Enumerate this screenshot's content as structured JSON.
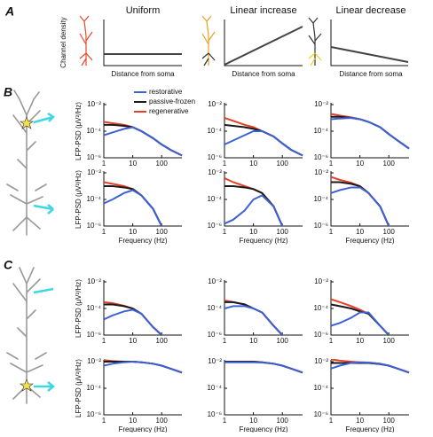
{
  "panel_labels": [
    "A",
    "B",
    "C"
  ],
  "schematics": [
    {
      "title": "Uniform",
      "y_label": "Channel density",
      "x_label": "Distance from soma"
    },
    {
      "title": "Linear increase",
      "x_label": "Distance from soma"
    },
    {
      "title": "Linear decrease",
      "x_label": "Distance from soma"
    }
  ],
  "chart_data": [
    {
      "type": "line",
      "xlog": true,
      "ylog": true,
      "x": [
        1,
        2,
        5,
        10,
        20,
        50,
        100,
        200,
        500
      ],
      "xlim": [
        1,
        500
      ],
      "ylim": [
        1e-06,
        0.01
      ],
      "xticks": [
        1,
        10,
        100
      ],
      "yticks": [
        {
          "value": 1e-06,
          "label": "10⁻⁶"
        },
        {
          "value": 0.0001,
          "label": "10⁻⁴"
        },
        {
          "value": 0.01,
          "label": "10⁻²"
        }
      ],
      "y_label": "LFP-PSD (μV²/Hz)",
      "series": [
        {
          "name": "restorative",
          "color": "#3d62d6",
          "values": [
            5e-05,
            8e-05,
            0.00015,
            0.0002,
            0.0001,
            3e-05,
            1e-05,
            4e-06,
            1.5e-06
          ]
        },
        {
          "name": "passive-frozen",
          "color": "#1a1a1a",
          "values": [
            0.0003,
            0.0003,
            0.00025,
            0.0002,
            0.0001,
            3e-05,
            1e-05,
            4e-06,
            1.5e-06
          ]
        },
        {
          "name": "regenerative",
          "color": "#e5402a",
          "values": [
            0.0005,
            0.0004,
            0.0003,
            0.0002,
            0.0001,
            3e-05,
            1e-05,
            4e-06,
            1.5e-06
          ]
        }
      ]
    },
    {
      "type": "line",
      "xlog": true,
      "ylog": true,
      "x": [
        1,
        2,
        5,
        10,
        20,
        50,
        100,
        200,
        500
      ],
      "xlim": [
        1,
        500
      ],
      "ylim": [
        1e-06,
        0.01
      ],
      "xticks": [
        1,
        10,
        100
      ],
      "yticks": [
        {
          "value": 1e-06,
          "label": "10⁻⁶"
        },
        {
          "value": 0.0001,
          "label": "10⁻⁴"
        },
        {
          "value": 0.01,
          "label": "10⁻²"
        }
      ],
      "series": [
        {
          "color": "#3d62d6",
          "values": [
            1e-05,
            2e-05,
            5e-05,
            0.0001,
            0.0001,
            4e-05,
            1.2e-05,
            4e-06,
            1.5e-06
          ]
        },
        {
          "color": "#1a1a1a",
          "values": [
            0.0003,
            0.00025,
            0.0002,
            0.00015,
            0.0001,
            4e-05,
            1.2e-05,
            4e-06,
            1.5e-06
          ]
        },
        {
          "color": "#e5402a",
          "values": [
            0.001,
            0.0006,
            0.0003,
            0.0002,
            0.0001,
            4e-05,
            1.2e-05,
            4e-06,
            1.5e-06
          ]
        }
      ]
    },
    {
      "type": "line",
      "xlog": true,
      "ylog": true,
      "x": [
        1,
        2,
        5,
        10,
        20,
        50,
        100,
        200,
        500
      ],
      "xlim": [
        1,
        500
      ],
      "ylim": [
        1e-06,
        0.01
      ],
      "xticks": [
        1,
        10,
        100
      ],
      "yticks": [
        {
          "value": 1e-06,
          "label": "10⁻⁶"
        },
        {
          "value": 0.0001,
          "label": "10⁻⁴"
        },
        {
          "value": 0.01,
          "label": "10⁻²"
        }
      ],
      "series": [
        {
          "color": "#3d62d6",
          "values": [
            0.0008,
            0.0009,
            0.001,
            0.0008,
            0.0005,
            0.0002,
            6e-05,
            2e-05,
            5e-06
          ]
        },
        {
          "color": "#1a1a1a",
          "values": [
            0.0012,
            0.0012,
            0.001,
            0.0008,
            0.0005,
            0.0002,
            6e-05,
            2e-05,
            5e-06
          ]
        },
        {
          "color": "#e5402a",
          "values": [
            0.002,
            0.0015,
            0.0011,
            0.0008,
            0.0005,
            0.0002,
            6e-05,
            2e-05,
            5e-06
          ]
        }
      ]
    },
    {
      "type": "line",
      "xlog": true,
      "ylog": true,
      "x": [
        1,
        2,
        5,
        10,
        20,
        50,
        100,
        200,
        500
      ],
      "xlim": [
        1,
        500
      ],
      "ylim": [
        1e-06,
        0.01
      ],
      "xticks": [
        1,
        10,
        100
      ],
      "yticks": [
        {
          "value": 1e-06,
          "label": "10⁻⁶"
        },
        {
          "value": 0.0001,
          "label": "10⁻⁴"
        },
        {
          "value": 0.01,
          "label": "10⁻²"
        }
      ],
      "y_label": "LFP-PSD (μV²/Hz)",
      "x_label": "Frequency (Hz)",
      "series": [
        {
          "color": "#3d62d6",
          "values": [
            5e-05,
            0.0001,
            0.0003,
            0.0005,
            0.0002,
            2e-05,
            1e-06,
            null,
            null
          ]
        },
        {
          "color": "#1a1a1a",
          "values": [
            0.001,
            0.001,
            0.0008,
            0.0006,
            0.0002,
            2e-05,
            1e-06,
            null,
            null
          ]
        },
        {
          "color": "#e5402a",
          "values": [
            0.002,
            0.0015,
            0.001,
            0.0006,
            0.0002,
            2e-05,
            1e-06,
            null,
            null
          ]
        }
      ]
    },
    {
      "type": "line",
      "xlog": true,
      "ylog": true,
      "x": [
        1,
        2,
        5,
        10,
        20,
        50,
        100,
        200,
        500
      ],
      "xlim": [
        1,
        500
      ],
      "ylim": [
        1e-06,
        0.01
      ],
      "xticks": [
        1,
        10,
        100
      ],
      "yticks": [
        {
          "value": 1e-06,
          "label": "10⁻⁶"
        },
        {
          "value": 0.0001,
          "label": "10⁻⁴"
        },
        {
          "value": 0.01,
          "label": "10⁻²"
        }
      ],
      "x_label": "Frequency (Hz)",
      "series": [
        {
          "color": "#3d62d6",
          "values": [
            1.5e-06,
            3e-06,
            1.5e-05,
            0.0001,
            0.0002,
            3e-05,
            1e-06,
            null,
            null
          ]
        },
        {
          "color": "#1a1a1a",
          "values": [
            0.001,
            0.001,
            0.0008,
            0.0006,
            0.0003,
            3e-05,
            1e-06,
            null,
            null
          ]
        },
        {
          "color": "#e5402a",
          "values": [
            0.004,
            0.002,
            0.001,
            0.0006,
            0.0003,
            3e-05,
            1e-06,
            null,
            null
          ]
        }
      ]
    },
    {
      "type": "line",
      "xlog": true,
      "ylog": true,
      "x": [
        1,
        2,
        5,
        10,
        20,
        50,
        100,
        200,
        500
      ],
      "xlim": [
        1,
        500
      ],
      "ylim": [
        1e-06,
        0.01
      ],
      "xticks": [
        1,
        10,
        100
      ],
      "yticks": [
        {
          "value": 1e-06,
          "label": "10⁻⁶"
        },
        {
          "value": 0.0001,
          "label": "10⁻⁴"
        },
        {
          "value": 0.01,
          "label": "10⁻²"
        }
      ],
      "x_label": "Frequency (Hz)",
      "series": [
        {
          "color": "#3d62d6",
          "values": [
            0.0003,
            0.0005,
            0.0008,
            0.0008,
            0.0003,
            3e-05,
            1e-06,
            null,
            null
          ]
        },
        {
          "color": "#1a1a1a",
          "values": [
            0.002,
            0.002,
            0.0015,
            0.001,
            0.0003,
            3e-05,
            1e-06,
            null,
            null
          ]
        },
        {
          "color": "#e5402a",
          "values": [
            0.005,
            0.003,
            0.0018,
            0.001,
            0.0003,
            3e-05,
            1e-06,
            null,
            null
          ]
        }
      ]
    },
    {
      "type": "line",
      "xlog": true,
      "ylog": true,
      "x": [
        1,
        2,
        5,
        10,
        20,
        50,
        100,
        200,
        500
      ],
      "xlim": [
        1,
        500
      ],
      "ylim": [
        1e-06,
        0.01
      ],
      "xticks": [
        1,
        10,
        100
      ],
      "yticks": [
        {
          "value": 1e-06,
          "label": "10⁻⁶"
        },
        {
          "value": 0.0001,
          "label": "10⁻⁴"
        },
        {
          "value": 0.01,
          "label": "10⁻²"
        }
      ],
      "y_label": "LFP-PSD (μV²/Hz)",
      "series": [
        {
          "color": "#3d62d6",
          "values": [
            1.5e-05,
            3e-05,
            6e-05,
            8e-05,
            4e-05,
            4e-06,
            1e-06,
            null,
            null
          ]
        },
        {
          "color": "#1a1a1a",
          "values": [
            0.0002,
            0.0002,
            0.00015,
            0.0001,
            4e-05,
            4e-06,
            1e-06,
            null,
            null
          ]
        },
        {
          "color": "#e5402a",
          "values": [
            0.0003,
            0.00025,
            0.00016,
            0.0001,
            4e-05,
            4e-06,
            1e-06,
            null,
            null
          ]
        }
      ]
    },
    {
      "type": "line",
      "xlog": true,
      "ylog": true,
      "x": [
        1,
        2,
        5,
        10,
        20,
        50,
        100,
        200,
        500
      ],
      "xlim": [
        1,
        500
      ],
      "ylim": [
        1e-06,
        0.01
      ],
      "xticks": [
        1,
        10,
        100
      ],
      "yticks": [
        {
          "value": 1e-06,
          "label": "10⁻⁶"
        },
        {
          "value": 0.0001,
          "label": "10⁻⁴"
        },
        {
          "value": 0.01,
          "label": "10⁻²"
        }
      ],
      "series": [
        {
          "color": "#3d62d6",
          "values": [
            0.0001,
            0.00015,
            0.00015,
            0.0001,
            5e-05,
            5e-06,
            1e-06,
            null,
            null
          ]
        },
        {
          "color": "#1a1a1a",
          "values": [
            0.0003,
            0.0003,
            0.0002,
            0.0001,
            5e-05,
            5e-06,
            1e-06,
            null,
            null
          ]
        },
        {
          "color": "#e5402a",
          "values": [
            0.0004,
            0.0003,
            0.0002,
            0.0001,
            5e-05,
            5e-06,
            1e-06,
            null,
            null
          ]
        }
      ]
    },
    {
      "type": "line",
      "xlog": true,
      "ylog": true,
      "x": [
        1,
        2,
        5,
        10,
        20,
        50,
        100,
        200,
        500
      ],
      "xlim": [
        1,
        500
      ],
      "ylim": [
        1e-06,
        0.01
      ],
      "xticks": [
        1,
        10,
        100
      ],
      "yticks": [
        {
          "value": 1e-06,
          "label": "10⁻⁶"
        },
        {
          "value": 0.0001,
          "label": "10⁻⁴"
        },
        {
          "value": 0.01,
          "label": "10⁻²"
        }
      ],
      "series": [
        {
          "color": "#3d62d6",
          "values": [
            5e-06,
            8e-06,
            2e-05,
            5e-05,
            5e-05,
            5e-06,
            1e-06,
            null,
            null
          ]
        },
        {
          "color": "#1a1a1a",
          "values": [
            0.0002,
            0.00015,
            0.0001,
            6e-05,
            4e-05,
            5e-06,
            1e-06,
            null,
            null
          ]
        },
        {
          "color": "#e5402a",
          "values": [
            0.0005,
            0.0003,
            0.00015,
            8e-05,
            4e-05,
            5e-06,
            1e-06,
            null,
            null
          ]
        }
      ]
    },
    {
      "type": "line",
      "xlog": true,
      "ylog": true,
      "x": [
        1,
        2,
        5,
        10,
        20,
        50,
        100,
        200,
        500
      ],
      "xlim": [
        1,
        500
      ],
      "ylim": [
        1e-06,
        0.01
      ],
      "xticks": [
        1,
        10,
        100
      ],
      "yticks": [
        {
          "value": 1e-06,
          "label": "10⁻⁶"
        },
        {
          "value": 0.0001,
          "label": "10⁻⁴"
        },
        {
          "value": 0.01,
          "label": "10⁻²"
        }
      ],
      "y_label": "LFP-PSD (μV²/Hz)",
      "x_label": "Frequency (Hz)",
      "series": [
        {
          "color": "#3d62d6",
          "values": [
            0.005,
            0.007,
            0.009,
            0.01,
            0.009,
            0.007,
            0.005,
            0.003,
            0.0015
          ]
        },
        {
          "color": "#1a1a1a",
          "values": [
            0.01,
            0.01,
            0.01,
            0.01,
            0.009,
            0.007,
            0.005,
            0.003,
            0.0015
          ]
        },
        {
          "color": "#e5402a",
          "values": [
            0.013,
            0.011,
            0.01,
            0.01,
            0.009,
            0.007,
            0.005,
            0.003,
            0.0015
          ]
        }
      ]
    },
    {
      "type": "line",
      "xlog": true,
      "ylog": true,
      "x": [
        1,
        2,
        5,
        10,
        20,
        50,
        100,
        200,
        500
      ],
      "xlim": [
        1,
        500
      ],
      "ylim": [
        1e-06,
        0.01
      ],
      "xticks": [
        1,
        10,
        100
      ],
      "yticks": [
        {
          "value": 1e-06,
          "label": "10⁻⁶"
        },
        {
          "value": 0.0001,
          "label": "10⁻⁴"
        },
        {
          "value": 0.01,
          "label": "10⁻²"
        }
      ],
      "x_label": "Frequency (Hz)",
      "series": [
        {
          "color": "#3d62d6",
          "values": [
            0.009,
            0.009,
            0.009,
            0.009,
            0.0085,
            0.007,
            0.005,
            0.003,
            0.0015
          ]
        },
        {
          "color": "#1a1a1a",
          "values": [
            0.01,
            0.01,
            0.01,
            0.01,
            0.009,
            0.007,
            0.005,
            0.003,
            0.0015
          ]
        },
        {
          "color": "#e5402a",
          "values": [
            0.01,
            0.01,
            0.01,
            0.01,
            0.009,
            0.007,
            0.005,
            0.003,
            0.0015
          ]
        }
      ]
    },
    {
      "type": "line",
      "xlog": true,
      "ylog": true,
      "x": [
        1,
        2,
        5,
        10,
        20,
        50,
        100,
        200,
        500
      ],
      "xlim": [
        1,
        500
      ],
      "ylim": [
        1e-06,
        0.01
      ],
      "xticks": [
        1,
        10,
        100
      ],
      "yticks": [
        {
          "value": 1e-06,
          "label": "10⁻⁶"
        },
        {
          "value": 0.0001,
          "label": "10⁻⁴"
        },
        {
          "value": 0.01,
          "label": "10⁻²"
        }
      ],
      "x_label": "Frequency (Hz)",
      "series": [
        {
          "color": "#3d62d6",
          "values": [
            0.003,
            0.005,
            0.008,
            0.009,
            0.0085,
            0.007,
            0.005,
            0.003,
            0.0015
          ]
        },
        {
          "color": "#1a1a1a",
          "values": [
            0.008,
            0.008,
            0.008,
            0.008,
            0.008,
            0.0065,
            0.005,
            0.003,
            0.0015
          ]
        },
        {
          "color": "#e5402a",
          "values": [
            0.015,
            0.012,
            0.01,
            0.009,
            0.0085,
            0.007,
            0.005,
            0.003,
            0.0015
          ]
        }
      ]
    }
  ]
}
